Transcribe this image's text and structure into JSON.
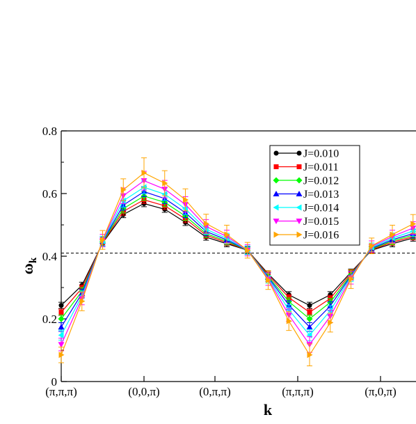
{
  "chart_data": {
    "type": "line",
    "xlabel": "k",
    "ylabel": "ω",
    "ylabel_sub": "k",
    "xlim": [
      0,
      30
    ],
    "ylim": [
      0,
      0.8
    ],
    "yticks": [
      0,
      0.2,
      0.4,
      0.6,
      0.8
    ],
    "ytick_labels": [
      "0",
      "0.2",
      "0.4",
      "0.6",
      "0.8"
    ],
    "xticks": [
      0,
      7,
      13,
      20,
      27
    ],
    "xtick_labels": [
      "(π,π,π)",
      "(0,0,π)",
      "(0,π,π)",
      "(π,π,π)",
      "(π,0,π)"
    ],
    "reference_line": {
      "y": 0.41,
      "style": "dashed"
    },
    "legend_position": "top-right",
    "grid": false,
    "x": [
      0,
      1.75,
      3.5,
      5.25,
      7,
      8.75,
      10.5,
      12.25,
      14,
      15.75,
      17.5,
      19.25,
      21,
      22.75,
      24.5,
      26.25,
      28,
      29.75
    ],
    "series": [
      {
        "name": "J=0.010",
        "color": "#000000",
        "marker": "circle",
        "values": [
          0.243,
          0.307,
          0.442,
          0.533,
          0.568,
          0.55,
          0.508,
          0.461,
          0.44,
          0.419,
          0.344,
          0.277,
          0.243,
          0.277,
          0.349,
          0.419,
          0.44,
          0.458
        ],
        "errors": [
          0.01,
          0.01,
          0.01,
          0.01,
          0.01,
          0.01,
          0.01,
          0.01,
          0.01,
          0.01,
          0.01,
          0.01,
          0.01,
          0.01,
          0.01,
          0.01,
          0.01,
          0.01
        ]
      },
      {
        "name": "J=0.011",
        "color": "#ff0000",
        "marker": "square",
        "values": [
          0.221,
          0.298,
          0.443,
          0.543,
          0.58,
          0.561,
          0.519,
          0.467,
          0.444,
          0.419,
          0.34,
          0.268,
          0.221,
          0.265,
          0.345,
          0.421,
          0.445,
          0.462
        ],
        "errors": [
          0.01,
          0.01,
          0.01,
          0.012,
          0.012,
          0.012,
          0.012,
          0.01,
          0.01,
          0.01,
          0.01,
          0.01,
          0.01,
          0.01,
          0.01,
          0.01,
          0.01,
          0.01
        ]
      },
      {
        "name": "J=0.012",
        "color": "#00ff00",
        "marker": "diamond",
        "values": [
          0.2,
          0.288,
          0.445,
          0.552,
          0.592,
          0.572,
          0.528,
          0.472,
          0.448,
          0.419,
          0.336,
          0.255,
          0.2,
          0.253,
          0.341,
          0.423,
          0.449,
          0.467
        ],
        "errors": [
          0.012,
          0.012,
          0.012,
          0.014,
          0.014,
          0.014,
          0.014,
          0.012,
          0.012,
          0.01,
          0.012,
          0.012,
          0.012,
          0.012,
          0.012,
          0.01,
          0.012,
          0.012
        ]
      },
      {
        "name": "J=0.013",
        "color": "#0000ff",
        "marker": "triangle-up",
        "values": [
          0.174,
          0.281,
          0.447,
          0.563,
          0.606,
          0.584,
          0.539,
          0.479,
          0.452,
          0.419,
          0.333,
          0.244,
          0.174,
          0.241,
          0.338,
          0.425,
          0.453,
          0.472
        ],
        "errors": [
          0.014,
          0.014,
          0.014,
          0.016,
          0.016,
          0.016,
          0.016,
          0.014,
          0.014,
          0.012,
          0.014,
          0.014,
          0.014,
          0.014,
          0.014,
          0.012,
          0.014,
          0.014
        ]
      },
      {
        "name": "J=0.014",
        "color": "#00ffff",
        "marker": "triangle-left",
        "values": [
          0.148,
          0.273,
          0.448,
          0.577,
          0.62,
          0.598,
          0.551,
          0.486,
          0.457,
          0.419,
          0.33,
          0.229,
          0.148,
          0.226,
          0.335,
          0.428,
          0.458,
          0.48
        ],
        "errors": [
          0.016,
          0.016,
          0.016,
          0.02,
          0.02,
          0.02,
          0.018,
          0.016,
          0.016,
          0.014,
          0.016,
          0.016,
          0.018,
          0.016,
          0.016,
          0.014,
          0.016,
          0.016
        ]
      },
      {
        "name": "J=0.015",
        "color": "#ff00ff",
        "marker": "triangle-down",
        "values": [
          0.118,
          0.265,
          0.45,
          0.593,
          0.641,
          0.614,
          0.565,
          0.495,
          0.463,
          0.419,
          0.327,
          0.212,
          0.118,
          0.208,
          0.331,
          0.431,
          0.463,
          0.49
        ],
        "errors": [
          0.02,
          0.02,
          0.02,
          0.025,
          0.03,
          0.028,
          0.025,
          0.022,
          0.02,
          0.018,
          0.02,
          0.02,
          0.025,
          0.02,
          0.02,
          0.018,
          0.02,
          0.02
        ]
      },
      {
        "name": "J=0.016",
        "color": "#ffa500",
        "marker": "triangle-right",
        "values": [
          0.085,
          0.256,
          0.452,
          0.612,
          0.666,
          0.633,
          0.58,
          0.504,
          0.469,
          0.419,
          0.324,
          0.193,
          0.085,
          0.188,
          0.327,
          0.433,
          0.469,
          0.503
        ],
        "errors": [
          0.025,
          0.03,
          0.03,
          0.035,
          0.048,
          0.04,
          0.035,
          0.03,
          0.03,
          0.025,
          0.03,
          0.03,
          0.035,
          0.03,
          0.03,
          0.025,
          0.03,
          0.03
        ]
      }
    ]
  }
}
